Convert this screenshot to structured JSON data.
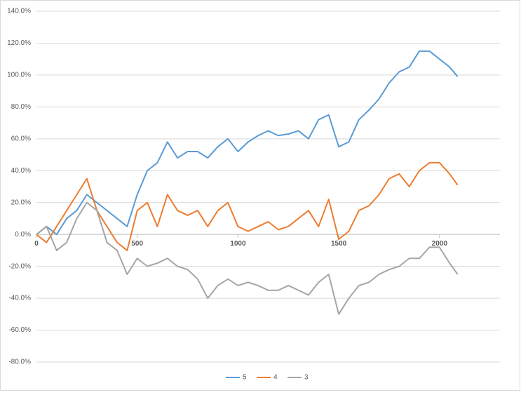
{
  "chart_data": {
    "type": "line",
    "x": [
      0,
      50,
      100,
      150,
      200,
      250,
      300,
      350,
      400,
      450,
      500,
      550,
      600,
      650,
      700,
      750,
      800,
      850,
      900,
      950,
      1000,
      1050,
      1100,
      1150,
      1200,
      1250,
      1300,
      1350,
      1400,
      1450,
      1500,
      1550,
      1600,
      1650,
      1700,
      1750,
      1800,
      1850,
      1900,
      1950,
      2000,
      2050,
      2090
    ],
    "series": [
      {
        "name": "5",
        "color": "#5b9bd5",
        "values": [
          0,
          5,
          0,
          10,
          15,
          25,
          20,
          15,
          10,
          5,
          25,
          40,
          45,
          58,
          48,
          52,
          52,
          48,
          55,
          60,
          52,
          58,
          62,
          65,
          62,
          63,
          65,
          60,
          72,
          75,
          55,
          58,
          72,
          78,
          85,
          95,
          102,
          105,
          115,
          115,
          110,
          105,
          99
        ]
      },
      {
        "name": "4",
        "color": "#ed7d31",
        "values": [
          0,
          -5,
          5,
          15,
          25,
          35,
          15,
          5,
          -5,
          -10,
          15,
          20,
          5,
          25,
          15,
          12,
          15,
          5,
          15,
          20,
          5,
          2,
          5,
          8,
          3,
          5,
          10,
          15,
          5,
          22,
          -3,
          2,
          15,
          18,
          25,
          35,
          38,
          30,
          40,
          45,
          45,
          38,
          31
        ]
      },
      {
        "name": "3",
        "color": "#a5a5a5",
        "values": [
          0,
          5,
          -10,
          -5,
          10,
          20,
          15,
          -5,
          -10,
          -25,
          -15,
          -20,
          -18,
          -15,
          -20,
          -22,
          -28,
          -40,
          -32,
          -28,
          -32,
          -30,
          -32,
          -35,
          -35,
          -32,
          -35,
          -38,
          -30,
          -25,
          -50,
          -40,
          -32,
          -30,
          -25,
          -22,
          -20,
          -15,
          -15,
          -8,
          -8,
          -18,
          -25
        ]
      }
    ],
    "xlim": [
      0,
      2300
    ],
    "xticks": [
      0,
      500,
      1000,
      1500,
      2000
    ],
    "ylim": [
      -80,
      140
    ],
    "yticks": [
      {
        "value": -80,
        "label": "-80.0%"
      },
      {
        "value": -60,
        "label": "-60.0%"
      },
      {
        "value": -40,
        "label": "-40.0%"
      },
      {
        "value": -20,
        "label": "-20.0%"
      },
      {
        "value": 0,
        "label": "0.0%"
      },
      {
        "value": 20,
        "label": "20.0%"
      },
      {
        "value": 40,
        "label": "40.0%"
      },
      {
        "value": 60,
        "label": "60.0%"
      },
      {
        "value": 80,
        "label": "80.0%"
      },
      {
        "value": 100,
        "label": "100.0%"
      },
      {
        "value": 120,
        "label": "120.0%"
      },
      {
        "value": 140,
        "label": "140.0%"
      }
    ],
    "grid": true,
    "legend": "bottom"
  }
}
